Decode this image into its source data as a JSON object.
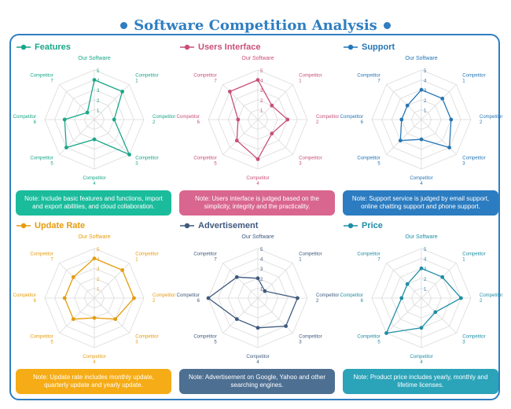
{
  "page": {
    "title": "Software Competition Analysis"
  },
  "axes": [
    "Our Software",
    "Competitor\n1",
    "Competitor\n2",
    "Competitor\n3",
    "Competitor\n4",
    "Competitor\n5",
    "Competitor\n6",
    "Competitor\n7"
  ],
  "ticks": [
    "1",
    "2",
    "3",
    "4",
    "5"
  ],
  "chart_data": [
    {
      "type": "radar",
      "title": "Features",
      "color": "#1AA689",
      "categories": [
        "Our Software",
        "Competitor 1",
        "Competitor 2",
        "Competitor 3",
        "Competitor 4",
        "Competitor 5",
        "Competitor 6",
        "Competitor 7"
      ],
      "values": [
        4,
        4,
        2,
        5,
        2,
        4,
        3,
        1
      ],
      "range": [
        0,
        5
      ],
      "note": "Note: Include basic features and functions, import and export abilities, and cloud collaboration.",
      "note_color": "#1ABC9C"
    },
    {
      "type": "radar",
      "title": "Users Interface",
      "color": "#C8507A",
      "categories": [
        "Our Software",
        "Competitor 1",
        "Competitor 2",
        "Competitor 3",
        "Competitor 4",
        "Competitor 5",
        "Competitor 6",
        "Competitor 7"
      ],
      "values": [
        4,
        2,
        3,
        2,
        4,
        3,
        2,
        4
      ],
      "range": [
        0,
        5
      ],
      "note": "Note: Users interface is judged based on the simplicity, integrity and the practicality.",
      "note_color": "#D9668E"
    },
    {
      "type": "radar",
      "title": "Support",
      "color": "#2676B5",
      "categories": [
        "Our Software",
        "Competitor 1",
        "Competitor 2",
        "Competitor 3",
        "Competitor 4",
        "Competitor 5",
        "Competitor 6",
        "Competitor 7"
      ],
      "values": [
        3,
        3,
        3,
        4,
        2,
        3,
        2,
        2
      ],
      "range": [
        0,
        5
      ],
      "note": "Note: Support service is judged by email support, online chatting support and phone support.",
      "note_color": "#2B7CC0"
    },
    {
      "type": "radar",
      "title": "Update Rate",
      "color": "#E59C0C",
      "categories": [
        "Our Software",
        "Competitor 1",
        "Competitor 2",
        "Competitor 3",
        "Competitor 4",
        "Competitor 5",
        "Competitor 6",
        "Competitor 7"
      ],
      "values": [
        4,
        4,
        4,
        3,
        2,
        3,
        3,
        3
      ],
      "range": [
        0,
        5
      ],
      "note": "Note: Update rate includes monthly update, quarterly update and yearly update.",
      "note_color": "#F5AC16"
    },
    {
      "type": "radar",
      "title": "Advertisement",
      "color": "#3F5A7E",
      "categories": [
        "Our Software",
        "Competitor 1",
        "Competitor 2",
        "Competitor 3",
        "Competitor 4",
        "Competitor 5",
        "Competitor 6",
        "Competitor 7"
      ],
      "values": [
        2,
        1,
        4,
        4,
        3,
        3,
        5,
        3
      ],
      "range": [
        0,
        5
      ],
      "note": "Note: Advertisement on Google, Yahoo and other searching engines.",
      "note_color": "#4D6F92"
    },
    {
      "type": "radar",
      "title": "Price",
      "color": "#1F8EA4",
      "categories": [
        "Our Software",
        "Competitor 1",
        "Competitor 2",
        "Competitor 3",
        "Competitor 4",
        "Competitor 5",
        "Competitor 6",
        "Competitor 7"
      ],
      "values": [
        3,
        3,
        4,
        2,
        3,
        5,
        2,
        2
      ],
      "range": [
        0,
        5
      ],
      "note": "Note: Product price includes yearly, monthly and lifetime licenses.",
      "note_color": "#2BA3B8"
    }
  ]
}
